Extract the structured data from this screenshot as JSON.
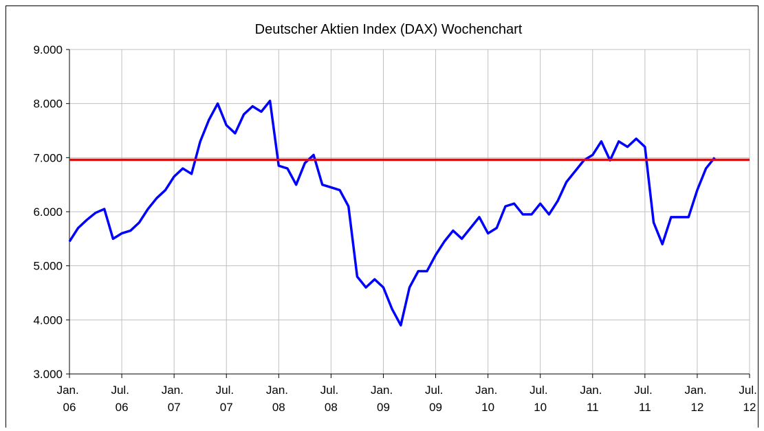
{
  "chart_data": {
    "type": "line",
    "title": "Deutscher Aktien Index (DAX) Wochenchart",
    "x": [
      "2006-01",
      "2006-02",
      "2006-03",
      "2006-04",
      "2006-05",
      "2006-06",
      "2006-07",
      "2006-08",
      "2006-09",
      "2006-10",
      "2006-11",
      "2006-12",
      "2007-01",
      "2007-02",
      "2007-03",
      "2007-04",
      "2007-05",
      "2007-06",
      "2007-07",
      "2007-08",
      "2007-09",
      "2007-10",
      "2007-11",
      "2007-12",
      "2008-01",
      "2008-02",
      "2008-03",
      "2008-04",
      "2008-05",
      "2008-06",
      "2008-07",
      "2008-08",
      "2008-09",
      "2008-10",
      "2008-11",
      "2008-12",
      "2009-01",
      "2009-02",
      "2009-03",
      "2009-04",
      "2009-05",
      "2009-06",
      "2009-07",
      "2009-08",
      "2009-09",
      "2009-10",
      "2009-11",
      "2009-12",
      "2010-01",
      "2010-02",
      "2010-03",
      "2010-04",
      "2010-05",
      "2010-06",
      "2010-07",
      "2010-08",
      "2010-09",
      "2010-10",
      "2010-11",
      "2010-12",
      "2011-01",
      "2011-02",
      "2011-03",
      "2011-04",
      "2011-05",
      "2011-06",
      "2011-07",
      "2011-08",
      "2011-09",
      "2011-10",
      "2011-11",
      "2011-12",
      "2012-01",
      "2012-02",
      "2012-03"
    ],
    "series": [
      {
        "name": "DAX",
        "color": "#0000ff",
        "values": [
          5450,
          5700,
          5850,
          5980,
          6050,
          5500,
          5600,
          5650,
          5800,
          6050,
          6250,
          6400,
          6650,
          6800,
          6700,
          7300,
          7700,
          8000,
          7600,
          7450,
          7800,
          7950,
          7850,
          8050,
          6850,
          6800,
          6500,
          6900,
          7050,
          6500,
          6450,
          6400,
          6100,
          4800,
          4600,
          4750,
          4600,
          4200,
          3900,
          4600,
          4900,
          4900,
          5200,
          5450,
          5650,
          5500,
          5700,
          5900,
          5600,
          5700,
          6100,
          6150,
          5950,
          5950,
          6150,
          5950,
          6200,
          6550,
          6750,
          6950,
          7050,
          7300,
          6950,
          7300,
          7200,
          7350,
          7200,
          5800,
          5400,
          5900,
          5900,
          5900,
          6400,
          6800,
          7000
        ]
      }
    ],
    "reference_line": {
      "value": 6960,
      "color": "#ff0000"
    },
    "xlim": [
      "2006-01",
      "2012-07"
    ],
    "xticks": [
      {
        "value": "2006-01",
        "label": "Jan. 06"
      },
      {
        "value": "2006-07",
        "label": "Jul. 06"
      },
      {
        "value": "2007-01",
        "label": "Jan. 07"
      },
      {
        "value": "2007-07",
        "label": "Jul. 07"
      },
      {
        "value": "2008-01",
        "label": "Jan. 08"
      },
      {
        "value": "2008-07",
        "label": "Jul. 08"
      },
      {
        "value": "2009-01",
        "label": "Jan. 09"
      },
      {
        "value": "2009-07",
        "label": "Jul. 09"
      },
      {
        "value": "2010-01",
        "label": "Jan. 10"
      },
      {
        "value": "2010-07",
        "label": "Jul. 10"
      },
      {
        "value": "2011-01",
        "label": "Jan. 11"
      },
      {
        "value": "2011-07",
        "label": "Jul. 11"
      },
      {
        "value": "2012-01",
        "label": "Jan. 12"
      },
      {
        "value": "2012-07",
        "label": "Jul. 12"
      }
    ],
    "ylim": [
      3000,
      9000
    ],
    "yticks": [
      {
        "value": 3000,
        "label": "3.000"
      },
      {
        "value": 4000,
        "label": "4.000"
      },
      {
        "value": 5000,
        "label": "5.000"
      },
      {
        "value": 6000,
        "label": "6.000"
      },
      {
        "value": 7000,
        "label": "7.000"
      },
      {
        "value": 8000,
        "label": "8.000"
      },
      {
        "value": 9000,
        "label": "9.000"
      }
    ],
    "grid": true
  }
}
